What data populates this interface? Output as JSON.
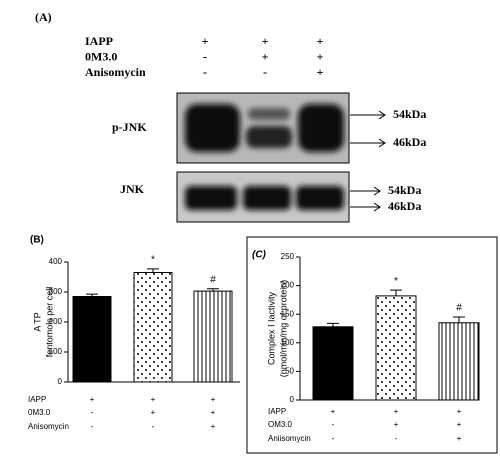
{
  "panel_a": {
    "label": "(A)",
    "conditions": [
      {
        "name": "IAPP",
        "signs": [
          "+",
          "+",
          "+"
        ]
      },
      {
        "name": "0M3.0",
        "signs": [
          "-",
          "+",
          "+"
        ]
      },
      {
        "name": "Anisomycin",
        "signs": [
          "-",
          "-",
          "+"
        ]
      }
    ],
    "blots": [
      {
        "name": "p-JNK",
        "markers": [
          "54kDa",
          "46kDa"
        ]
      },
      {
        "name": "JNK",
        "markers": [
          "54kDa",
          "46kDa"
        ]
      }
    ]
  },
  "chart_data": [
    {
      "type": "bar",
      "label": "(B)",
      "ylabel": [
        "A TP",
        "fentomols per cell"
      ],
      "values": [
        285,
        365,
        303
      ],
      "errors": [
        8,
        12,
        8
      ],
      "annotations": [
        null,
        "*",
        "#"
      ],
      "colors": [
        "#000000",
        "#ffffff",
        "#ffffff"
      ],
      "patterns": [
        "solid",
        "dots",
        "vlines"
      ],
      "ylim": [
        0,
        400
      ],
      "yticks": [
        0,
        100,
        200,
        300,
        400
      ],
      "conditions": [
        {
          "name": "IAPP",
          "signs": [
            "+",
            "+",
            "+"
          ]
        },
        {
          "name": "0M3.0",
          "signs": [
            "-",
            "+",
            "+"
          ]
        },
        {
          "name": "Anisomycin",
          "signs": [
            "-",
            "-",
            "+"
          ]
        }
      ]
    },
    {
      "type": "bar",
      "label": "(C)",
      "ylabel": [
        "Complex I Iactivity",
        "(nmol/min/mg of protein)"
      ],
      "values": [
        128,
        182,
        135
      ],
      "errors": [
        6,
        10,
        10
      ],
      "annotations": [
        null,
        "*",
        "#"
      ],
      "colors": [
        "#000000",
        "#ffffff",
        "#ffffff"
      ],
      "patterns": [
        "solid",
        "dots",
        "vlines"
      ],
      "ylim": [
        0,
        250
      ],
      "yticks": [
        0,
        50,
        100,
        150,
        200,
        250
      ],
      "conditions": [
        {
          "name": "IAPP",
          "signs": [
            "+",
            "+",
            "+"
          ]
        },
        {
          "name": "OM3.0",
          "signs": [
            "-",
            "+",
            "+"
          ]
        },
        {
          "name": "Aniisomycin",
          "signs": [
            "-",
            "-",
            "+"
          ]
        }
      ]
    }
  ]
}
